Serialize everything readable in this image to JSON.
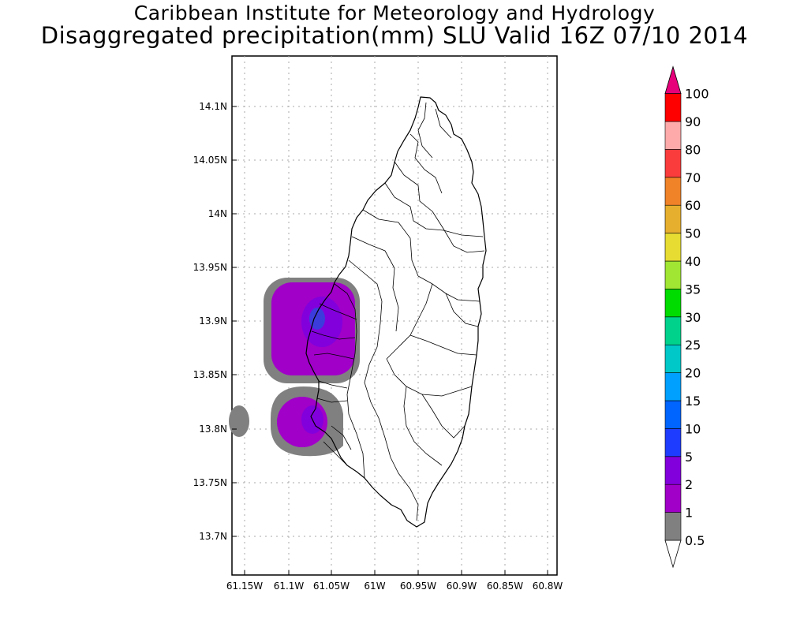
{
  "title": "Caribbean Institute for Meteorology and Hydrology",
  "subtitle": "Disaggregated precipitation(mm) SLU Valid 16Z 07/10 2014",
  "lat_labels": [
    "14.1N",
    "14.05N",
    "14N",
    "13.95N",
    "13.9N",
    "13.85N",
    "13.8N",
    "13.75N",
    "13.7N"
  ],
  "lon_labels": [
    "61.15W",
    "61.1W",
    "61.05W",
    "61W",
    "60.95W",
    "60.9W",
    "60.85W",
    "60.8W"
  ],
  "colorbar": {
    "labels": [
      "0.5",
      "1",
      "2",
      "5",
      "10",
      "15",
      "20",
      "25",
      "30",
      "35",
      "40",
      "50",
      "60",
      "70",
      "80",
      "90",
      "100"
    ],
    "colors": [
      "#808080",
      "#a000c8",
      "#8200dc",
      "#1e3cff",
      "#0064ff",
      "#00a0ff",
      "#00c8c8",
      "#00d28c",
      "#00dc00",
      "#a0e632",
      "#e6dc32",
      "#e6af2d",
      "#f08228",
      "#fa3c3c",
      "#ffaaaa",
      "#ff0000",
      "#ff3333",
      "#e6007a"
    ]
  }
}
